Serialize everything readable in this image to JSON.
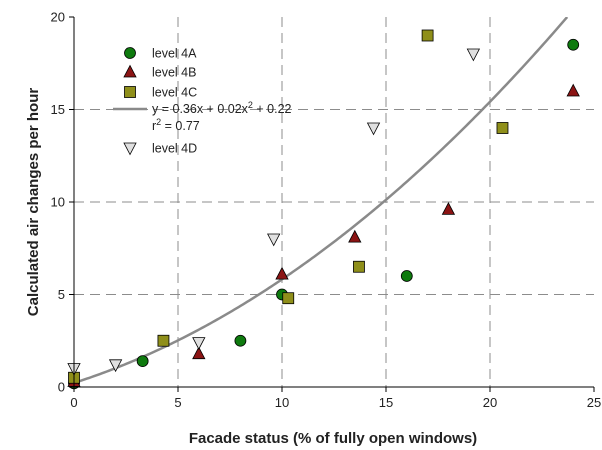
{
  "chart_data": {
    "type": "scatter",
    "xlabel": "Facade status (% of fully open windows)",
    "ylabel": "Calculated air changes per hour",
    "xlim": [
      0,
      25
    ],
    "ylim": [
      0,
      20
    ],
    "x_ticks": [
      0,
      5,
      10,
      15,
      20,
      25
    ],
    "y_ticks": [
      0,
      5,
      10,
      15,
      20
    ],
    "grid": "dashed",
    "legend_position": "top-left",
    "series": [
      {
        "name": "level 4A",
        "marker": "circle",
        "color": "#0e7a0e",
        "points": [
          [
            0,
            0.2
          ],
          [
            3.3,
            1.4
          ],
          [
            8,
            2.5
          ],
          [
            10,
            5.0
          ],
          [
            16,
            6.0
          ],
          [
            24,
            18.5
          ]
        ]
      },
      {
        "name": "level 4B",
        "marker": "triangle-up",
        "color": "#8b1414",
        "points": [
          [
            0,
            0.3
          ],
          [
            6,
            1.8
          ],
          [
            10,
            6.1
          ],
          [
            13.5,
            8.1
          ],
          [
            18,
            9.6
          ],
          [
            24,
            16.0
          ]
        ]
      },
      {
        "name": "level 4C",
        "marker": "square",
        "color": "#8f8f1a",
        "points": [
          [
            0,
            0.5
          ],
          [
            4.3,
            2.5
          ],
          [
            10.3,
            4.8
          ],
          [
            13.7,
            6.5
          ],
          [
            17,
            19.0
          ],
          [
            20.6,
            14.0
          ]
        ]
      },
      {
        "name": "level 4D",
        "marker": "triangle-down",
        "color": "#e0e0e0",
        "points": [
          [
            0,
            1.0
          ],
          [
            2,
            1.2
          ],
          [
            6,
            2.4
          ],
          [
            9.6,
            8.0
          ],
          [
            14.4,
            14.0
          ],
          [
            19.2,
            18.0
          ]
        ]
      }
    ],
    "fit": {
      "equation_line1": "y = 0.36x + 0.02x",
      "equation_sup": "2",
      "equation_tail": " + 0.22",
      "r2_base": "r",
      "r2_sup": "2",
      "r2_tail": " = 0.77",
      "coefficients": {
        "a": 0.02,
        "b": 0.36,
        "c": 0.22
      },
      "color": "#8a8a8a"
    }
  }
}
